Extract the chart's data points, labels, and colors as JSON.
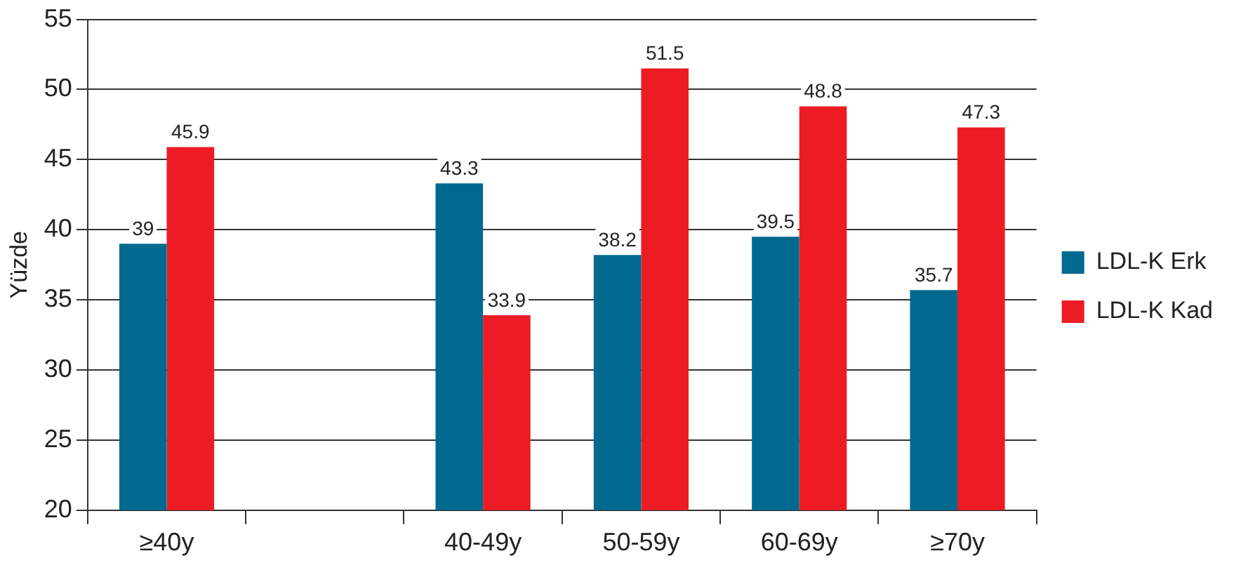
{
  "chart_data": {
    "type": "bar",
    "ylabel": "Yüzde",
    "categories": [
      "≥40y",
      null,
      "40-49y",
      "50-59y",
      "60-69y",
      "≥70y"
    ],
    "series": [
      {
        "name": "LDL-K Erk",
        "color": "#00698f",
        "values": [
          39,
          null,
          43.3,
          38.2,
          39.5,
          35.7
        ]
      },
      {
        "name": "LDL-K Kad",
        "color": "#ed1c24",
        "values": [
          45.9,
          null,
          33.9,
          51.5,
          48.8,
          47.3
        ]
      }
    ],
    "ylim": [
      20,
      55
    ],
    "yticks": [
      20,
      25,
      30,
      35,
      40,
      45,
      50,
      55
    ],
    "grid": "y",
    "legend": "right",
    "data_labels": true
  }
}
